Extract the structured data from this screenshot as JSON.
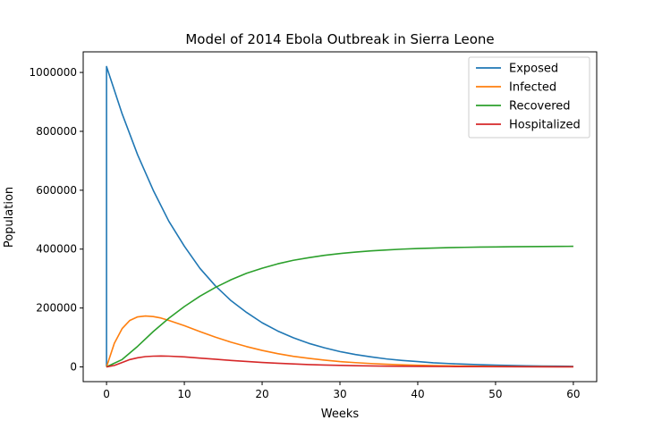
{
  "chart_data": {
    "type": "line",
    "title": "Model of 2014 Ebola Outbreak in Sierra Leone",
    "xlabel": "Weeks",
    "ylabel": "Population",
    "xlim": [
      -3,
      63
    ],
    "ylim": [
      -50000,
      1070000
    ],
    "xticks": [
      0,
      10,
      20,
      30,
      40,
      50,
      60
    ],
    "yticks": [
      0,
      200000,
      400000,
      600000,
      800000,
      1000000
    ],
    "grid": false,
    "legend_position": "top-right",
    "series": [
      {
        "name": "Exposed",
        "color": "#1f77b4",
        "x": [
          0,
          0,
          2,
          4,
          6,
          8,
          10,
          12,
          14,
          16,
          18,
          20,
          22,
          24,
          26,
          28,
          30,
          32,
          34,
          36,
          38,
          40,
          42,
          44,
          46,
          48,
          50,
          52,
          54,
          56,
          58,
          60
        ],
        "y": [
          0,
          1020000,
          860000,
          720000,
          600000,
          495000,
          410000,
          335000,
          275000,
          225000,
          185000,
          150000,
          122000,
          99000,
          80000,
          65000,
          52000,
          42000,
          34000,
          27000,
          22000,
          18000,
          14000,
          11500,
          9300,
          7500,
          6000,
          4800,
          3900,
          3100,
          2500,
          2000
        ]
      },
      {
        "name": "Infected",
        "color": "#ff7f0e",
        "x": [
          0,
          1,
          2,
          3,
          4,
          5,
          6,
          7,
          8,
          10,
          12,
          14,
          16,
          18,
          20,
          22,
          24,
          26,
          28,
          30,
          32,
          34,
          36,
          38,
          40,
          42,
          44,
          46,
          48,
          50,
          52,
          54,
          56,
          58,
          60
        ],
        "y": [
          0,
          80000,
          130000,
          158000,
          170000,
          173000,
          171000,
          166000,
          158000,
          140000,
          120000,
          101000,
          84000,
          69000,
          56000,
          45000,
          36000,
          29000,
          23000,
          18000,
          14500,
          11500,
          9000,
          7200,
          5700,
          4500,
          3600,
          2800,
          2200,
          1800,
          1400,
          1100,
          900,
          700,
          500
        ]
      },
      {
        "name": "Recovered",
        "color": "#2ca02c",
        "x": [
          0,
          2,
          4,
          6,
          8,
          10,
          12,
          14,
          16,
          18,
          20,
          22,
          24,
          26,
          28,
          30,
          32,
          34,
          36,
          38,
          40,
          42,
          44,
          46,
          48,
          50,
          52,
          54,
          56,
          58,
          60
        ],
        "y": [
          0,
          25000,
          70000,
          120000,
          165000,
          205000,
          240000,
          270000,
          296000,
          318000,
          335000,
          350000,
          362000,
          371000,
          379000,
          385000,
          390000,
          394000,
          397000,
          400000,
          402000,
          403500,
          405000,
          406000,
          407000,
          407500,
          408000,
          408500,
          409000,
          409300,
          409500
        ]
      },
      {
        "name": "Hospitalized",
        "color": "#d62728",
        "x": [
          0,
          1,
          2,
          3,
          4,
          5,
          6,
          7,
          8,
          10,
          12,
          14,
          16,
          18,
          20,
          22,
          24,
          26,
          28,
          30,
          32,
          34,
          36,
          38,
          40,
          44,
          48,
          52,
          56,
          60
        ],
        "y": [
          0,
          5000,
          15000,
          25000,
          31000,
          35000,
          36500,
          37000,
          36500,
          34000,
          30000,
          26000,
          22000,
          18500,
          15000,
          12500,
          10000,
          8000,
          6500,
          5200,
          4200,
          3400,
          2700,
          2200,
          1800,
          1200,
          800,
          500,
          350,
          250
        ]
      }
    ]
  }
}
